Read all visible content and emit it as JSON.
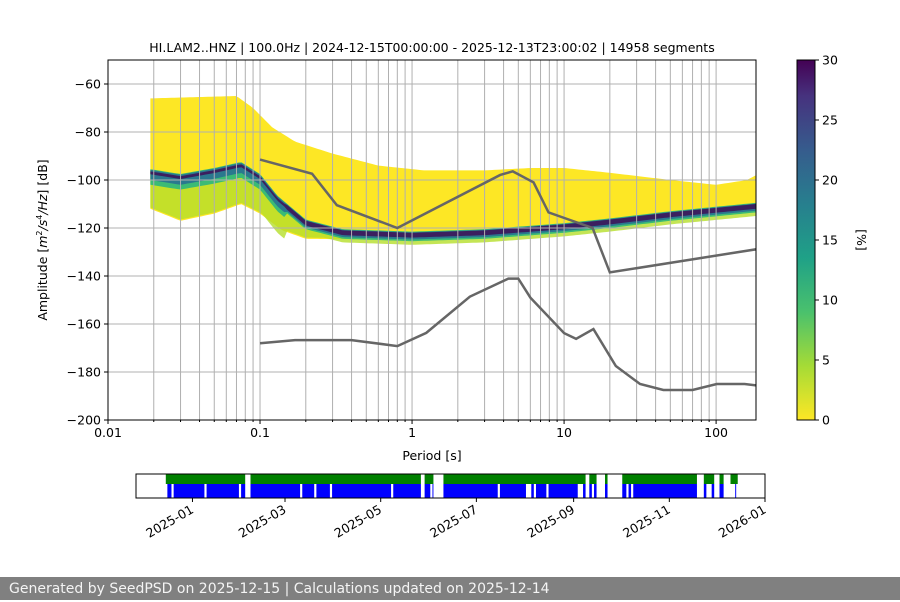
{
  "chart_data": {
    "type": "heatmap",
    "title": "HI.LAM2..HNZ | 100.0Hz | 2024-12-15T00:00:00 - 2025-12-13T23:00:02 | 14958 segments",
    "xlabel": "Period [s]",
    "ylabel": "Amplitude [$m^2/s^4/Hz$] [dB]",
    "x_scale": "log",
    "xlim": [
      0.01,
      183
    ],
    "ylim": [
      -200,
      -50
    ],
    "x_ticks": [
      0.01,
      0.1,
      1,
      10,
      100
    ],
    "x_tick_labels": [
      "0.01",
      "0.1",
      "1",
      "10",
      "100"
    ],
    "y_ticks": [
      -200,
      -180,
      -160,
      -140,
      -120,
      -100,
      -80,
      -60
    ],
    "y_tick_labels": [
      "−200",
      "−180",
      "−160",
      "−140",
      "−120",
      "−100",
      "−80",
      "−60"
    ],
    "grid": true,
    "colormap": "viridis_r",
    "colorbar": {
      "label": "[%]",
      "range": [
        0,
        30
      ],
      "ticks": [
        0,
        5,
        10,
        15,
        20,
        25,
        30
      ],
      "tick_labels": [
        "0",
        "5",
        "10",
        "15",
        "20",
        "25",
        "30"
      ]
    },
    "ppsd_envelope": {
      "upper": [
        [
          0.019,
          -66
        ],
        [
          0.07,
          -65
        ],
        [
          0.09,
          -70
        ],
        [
          0.12,
          -78
        ],
        [
          0.17,
          -84
        ],
        [
          0.3,
          -89
        ],
        [
          0.6,
          -94
        ],
        [
          1.2,
          -96
        ],
        [
          3,
          -96
        ],
        [
          6,
          -95
        ],
        [
          10,
          -95
        ],
        [
          20,
          -97
        ],
        [
          50,
          -100
        ],
        [
          100,
          -102
        ],
        [
          160,
          -100
        ],
        [
          183,
          -98
        ]
      ],
      "lower": [
        [
          0.019,
          -112
        ],
        [
          0.03,
          -117
        ],
        [
          0.05,
          -114
        ],
        [
          0.075,
          -110
        ],
        [
          0.1,
          -114
        ],
        [
          0.14,
          -121
        ],
        [
          0.2,
          -124.5
        ],
        [
          1,
          -125
        ],
        [
          3,
          -124
        ],
        [
          8,
          -121.5
        ],
        [
          20,
          -119
        ],
        [
          50,
          -116
        ],
        [
          183,
          -113
        ]
      ],
      "mode": [
        [
          0.019,
          -97
        ],
        [
          0.03,
          -99
        ],
        [
          0.05,
          -96.5
        ],
        [
          0.075,
          -94
        ],
        [
          0.1,
          -99
        ],
        [
          0.13,
          -108
        ],
        [
          0.2,
          -118
        ],
        [
          0.35,
          -122
        ],
        [
          1,
          -123
        ],
        [
          3,
          -122
        ],
        [
          10,
          -119.5
        ],
        [
          20,
          -117.5
        ],
        [
          50,
          -114.5
        ],
        [
          183,
          -111
        ]
      ]
    },
    "series": [
      {
        "name": "",
        "color": "#666666",
        "points": [
          [
            0.1,
            -91.5
          ],
          [
            0.22,
            -97.4
          ],
          [
            0.32,
            -110.5
          ],
          [
            0.8,
            -120
          ],
          [
            3.8,
            -97.9
          ],
          [
            4.6,
            -96.4
          ],
          [
            6.3,
            -101
          ],
          [
            7.9,
            -113.5
          ],
          [
            15.4,
            -120
          ],
          [
            20,
            -138.5
          ],
          [
            354.8,
            -126
          ]
        ]
      },
      {
        "name": "",
        "color": "#666666",
        "points": [
          [
            0.1,
            -168
          ],
          [
            0.17,
            -166.7
          ],
          [
            0.4,
            -166.7
          ],
          [
            0.8,
            -169.2
          ],
          [
            1.24,
            -163.7
          ],
          [
            2.4,
            -148.6
          ],
          [
            4.3,
            -141.1
          ],
          [
            5,
            -141.1
          ],
          [
            6,
            -149
          ],
          [
            10,
            -163.8
          ],
          [
            12,
            -166.2
          ],
          [
            15.6,
            -162.1
          ],
          [
            21.9,
            -177.5
          ],
          [
            31.6,
            -185
          ],
          [
            45,
            -187.5
          ],
          [
            70,
            -187.5
          ],
          [
            101,
            -185
          ],
          [
            154,
            -185
          ],
          [
            328,
            -187.5
          ]
        ]
      }
    ],
    "coverage": {
      "xlim": [
        "2024-11-26",
        "2026-01-01"
      ],
      "x_ticks": [
        "2025-01-01",
        "2025-03-01",
        "2025-05-01",
        "2025-07-01",
        "2025-09-01",
        "2025-11-01",
        "2026-01-01"
      ],
      "x_tick_labels": [
        "2025-01",
        "2025-03",
        "2025-05",
        "2025-07",
        "2025-09",
        "2025-11",
        "2026-01"
      ],
      "green": {
        "color": "#008000",
        "start": "2024-12-15",
        "end": "2025-12-14",
        "gaps": [
          [
            "2025-02-04",
            "2025-02-06"
          ],
          [
            "2025-05-27",
            "2025-05-28"
          ],
          [
            "2025-06-04",
            "2025-06-09"
          ],
          [
            "2025-09-09",
            "2025-09-10"
          ],
          [
            "2025-09-16",
            "2025-09-20"
          ],
          [
            "2025-09-23",
            "2025-10-01"
          ],
          [
            "2025-11-19",
            "2025-11-22"
          ],
          [
            "2025-11-30",
            "2025-12-02"
          ],
          [
            "2025-12-06",
            "2025-12-09"
          ]
        ]
      },
      "blue": {
        "color": "#0000ff",
        "start": "2024-12-16",
        "end": "2025-12-13",
        "gaps": [
          [
            "2024-12-19",
            "2024-12-19"
          ],
          [
            "2025-01-09",
            "2025-01-09"
          ],
          [
            "2025-01-31",
            "2025-01-31"
          ],
          [
            "2025-02-04",
            "2025-02-06"
          ],
          [
            "2025-03-11",
            "2025-03-11"
          ],
          [
            "2025-03-20",
            "2025-03-20"
          ],
          [
            "2025-03-30",
            "2025-03-30"
          ],
          [
            "2025-05-08",
            "2025-05-08"
          ],
          [
            "2025-05-27",
            "2025-05-28"
          ],
          [
            "2025-06-02",
            "2025-06-02"
          ],
          [
            "2025-06-04",
            "2025-06-09"
          ],
          [
            "2025-07-15",
            "2025-07-15"
          ],
          [
            "2025-08-02",
            "2025-08-04"
          ],
          [
            "2025-08-07",
            "2025-08-07"
          ],
          [
            "2025-08-15",
            "2025-08-15"
          ],
          [
            "2025-09-04",
            "2025-09-06"
          ],
          [
            "2025-09-09",
            "2025-09-10"
          ],
          [
            "2025-09-13",
            "2025-09-13"
          ],
          [
            "2025-09-16",
            "2025-09-20"
          ],
          [
            "2025-09-23",
            "2025-10-01"
          ],
          [
            "2025-10-05",
            "2025-10-05"
          ],
          [
            "2025-10-08",
            "2025-10-08"
          ],
          [
            "2025-11-19",
            "2025-11-22"
          ],
          [
            "2025-11-25",
            "2025-11-27"
          ],
          [
            "2025-11-30",
            "2025-12-02"
          ],
          [
            "2025-12-06",
            "2025-12-09"
          ],
          [
            "2025-12-10",
            "2025-12-12"
          ]
        ]
      }
    }
  },
  "footer": {
    "text": "Generated by SeedPSD on 2025-12-15 | Calculations updated on 2025-12-14"
  }
}
